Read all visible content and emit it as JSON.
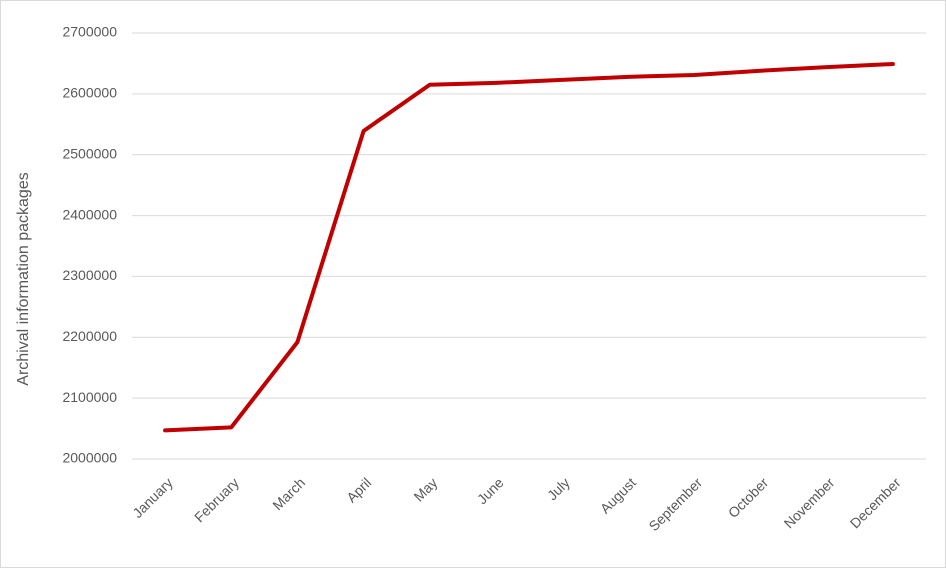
{
  "chart_data": {
    "type": "line",
    "y_label": "Archival information packages",
    "categories": [
      "January",
      "February",
      "March",
      "April",
      "May",
      "June",
      "July",
      "August",
      "September",
      "October",
      "November",
      "December"
    ],
    "values": [
      2047000,
      2052000,
      2192000,
      2539000,
      2615000,
      2618000,
      2623000,
      2628000,
      2631000,
      2638000,
      2644000,
      2649000
    ],
    "color": "#c00000",
    "ylim": [
      2000000,
      2700000
    ],
    "yticks": [
      2000000,
      2100000,
      2200000,
      2300000,
      2400000,
      2500000,
      2600000,
      2700000
    ],
    "grid": true
  }
}
